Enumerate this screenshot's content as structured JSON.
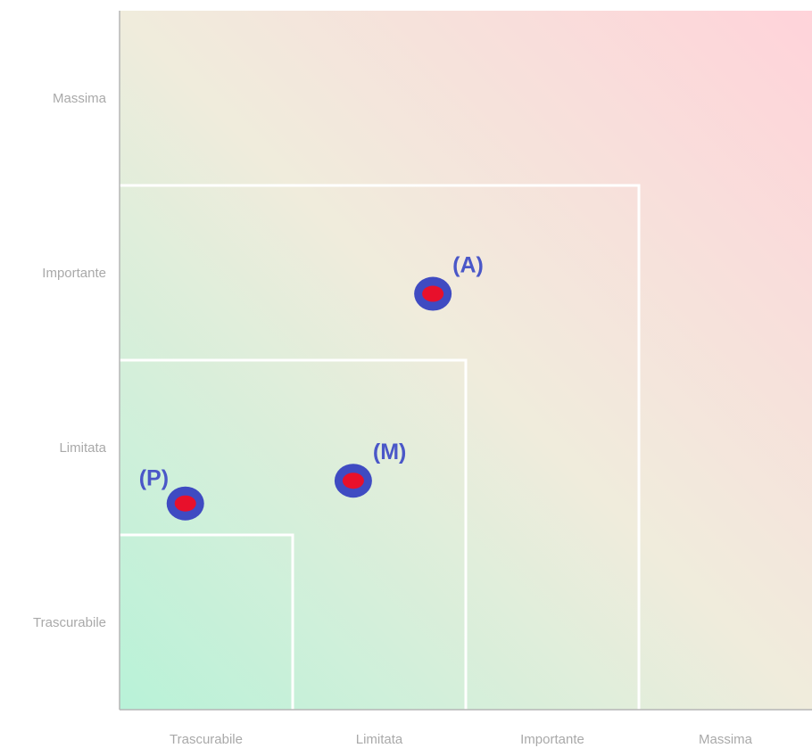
{
  "chart_data": {
    "type": "scatter",
    "title": "",
    "xlabel": "",
    "ylabel": "",
    "x_categories": [
      "Trascurabile",
      "Limitata",
      "Importante",
      "Massima"
    ],
    "y_categories": [
      "Trascurabile",
      "Limitata",
      "Importante",
      "Massima"
    ],
    "xlim": [
      0,
      4
    ],
    "ylim": [
      0,
      4
    ],
    "grid": false,
    "zones": [
      {
        "x_max": 1,
        "y_max": 1
      },
      {
        "x_max": 2,
        "y_max": 2
      },
      {
        "x_max": 3,
        "y_max": 3
      }
    ],
    "points": [
      {
        "label": "(P)",
        "x": 0.38,
        "y": 1.18
      },
      {
        "label": "(M)",
        "x": 1.35,
        "y": 1.31
      },
      {
        "label": "(A)",
        "x": 1.81,
        "y": 2.38
      }
    ],
    "colors": {
      "low_risk": "#b8f2d8",
      "high_risk": "#ffd3da",
      "zone_border": "#ffffff",
      "marker_outer": "#3f4bc2",
      "marker_inner": "#e8102b",
      "label": "#4a57c8",
      "tick_text": "#a9a9a9",
      "axis_line": "#b5b5b5"
    }
  }
}
